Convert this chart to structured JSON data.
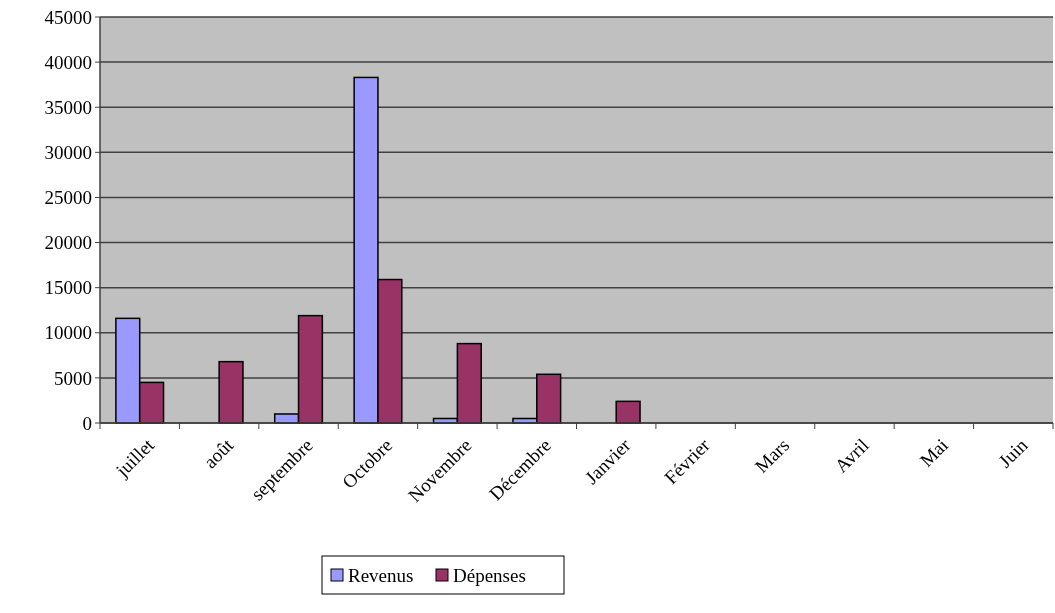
{
  "chart_data": {
    "type": "bar",
    "categories": [
      "juillet",
      "août",
      "septembre",
      "Octobre",
      "Novembre",
      "Décembre",
      "Janvier",
      "Février",
      "Mars",
      "Avril",
      "Mai",
      "Juin"
    ],
    "series": [
      {
        "name": "Revenus",
        "color": "#9999ff",
        "values": [
          11600,
          null,
          1000,
          38300,
          500,
          500,
          null,
          null,
          null,
          null,
          null,
          null
        ]
      },
      {
        "name": "Dépenses",
        "color": "#993366",
        "values": [
          4500,
          6800,
          11900,
          15900,
          8800,
          5400,
          2400,
          null,
          null,
          null,
          null,
          null
        ]
      }
    ],
    "ylim": [
      0,
      45000
    ],
    "yticks": [
      0,
      5000,
      10000,
      15000,
      20000,
      25000,
      30000,
      35000,
      40000,
      45000
    ],
    "grid": "y",
    "legend": "bottom"
  }
}
